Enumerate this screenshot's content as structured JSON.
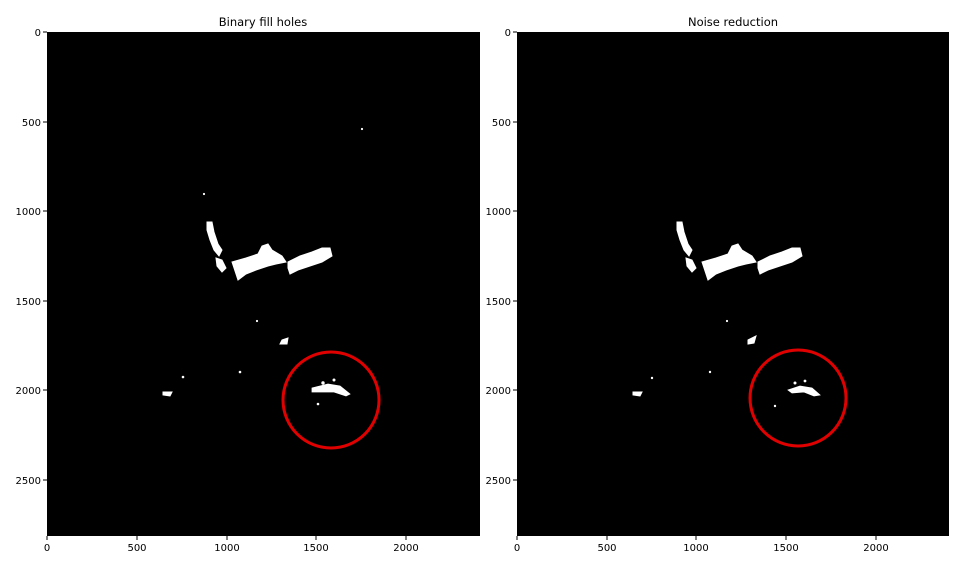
{
  "panels": [
    {
      "title": "Binary fill holes",
      "y_ticks": [
        "0",
        "500",
        "1000",
        "1500",
        "2000",
        "2500"
      ],
      "x_ticks": [
        "0",
        "500",
        "1000",
        "1500",
        "2000"
      ],
      "annotation_color": "#e00000"
    },
    {
      "title": "Noise reduction",
      "y_ticks": [
        "0",
        "500",
        "1000",
        "1500",
        "2000",
        "2500"
      ],
      "x_ticks": [
        "0",
        "500",
        "1000",
        "1500",
        "2000"
      ],
      "annotation_color": "#e00000"
    }
  ],
  "colors": {
    "background": "#000000",
    "foreground": "#ffffff",
    "annotation": "#e00000"
  }
}
